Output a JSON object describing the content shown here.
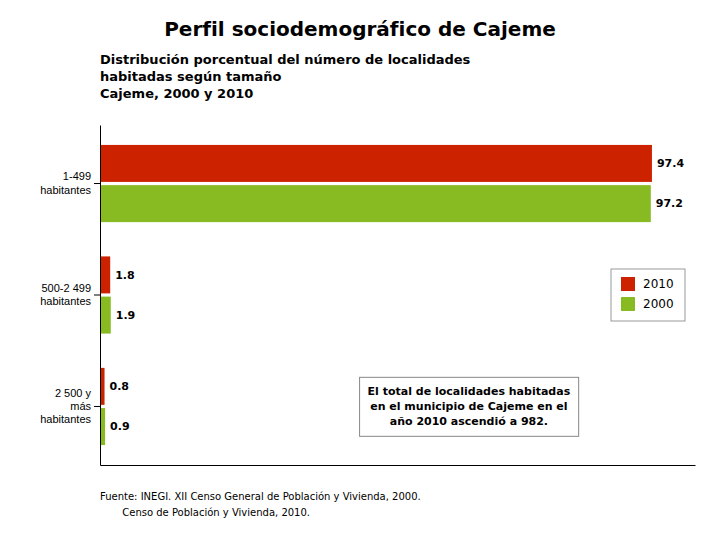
{
  "chart_data": {
    "type": "bar",
    "orientation": "horizontal",
    "title": "Perfil sociodemográfico de Cajeme",
    "subtitle": "Distribución porcentual del número de localidades\nhabitadas según tamaño\nCajeme, 2000 y 2010",
    "categories": [
      "1-499\nhabitantes",
      "500-2 499\nhabitantes",
      "2 500 y\nmás\nhabitantes"
    ],
    "series": [
      {
        "name": "2010",
        "color": "#cc2200",
        "values": [
          97.4,
          1.8,
          0.8
        ]
      },
      {
        "name": "2000",
        "color": "#88bb22",
        "values": [
          97.2,
          1.9,
          0.9
        ]
      }
    ],
    "xlim": [
      0,
      105
    ],
    "tick_labels": "y",
    "data_labels": true,
    "grid": false,
    "legend": "right",
    "annotations": [
      "El total de localidades habitadas\nen el municipio de Cajeme en el\naño 2010 ascendió a 982.",
      "Fuente: INEGI. XII Censo General de Población y Vivienda, 2000.",
      "       Censo de Población y Vivienda, 2010."
    ]
  }
}
